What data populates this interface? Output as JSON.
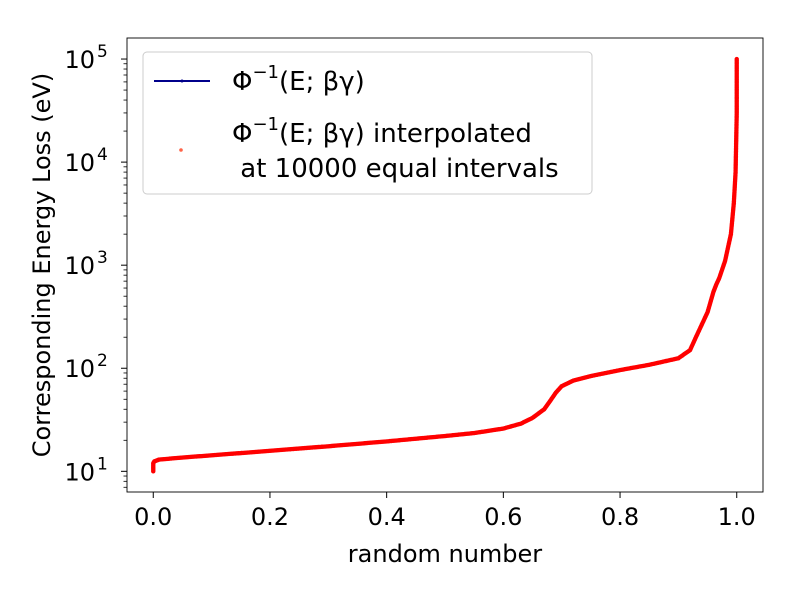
{
  "chart_data": {
    "type": "line",
    "xlabel": "random number",
    "ylabel": "Corresponding Energy Loss (eV)",
    "xlim": [
      -0.045,
      1.045
    ],
    "ylim": [
      6.3,
      160000
    ],
    "yscale": "log",
    "x_ticks": [
      "0.0",
      "0.2",
      "0.4",
      "0.6",
      "0.8",
      "1.0"
    ],
    "x_tick_values": [
      0,
      0.2,
      0.4,
      0.6,
      0.8,
      1.0
    ],
    "y_ticks": [
      {
        "value": 10,
        "base": "10",
        "exp": "1"
      },
      {
        "value": 100,
        "base": "10",
        "exp": "2"
      },
      {
        "value": 1000,
        "base": "10",
        "exp": "3"
      },
      {
        "value": 10000,
        "base": "10",
        "exp": "4"
      },
      {
        "value": 100000,
        "base": "10",
        "exp": "5"
      }
    ],
    "grid": false,
    "legend_position": "top-left",
    "series": [
      {
        "name": "Φ⁻¹(E; βγ)",
        "name_parts": {
          "phi": "Φ",
          "sup": "−1",
          "rest": "(E; βγ)"
        },
        "style": "line",
        "color": "#00008b",
        "x": [
          0,
          0,
          0.002,
          0.01,
          0.05,
          0.1,
          0.2,
          0.3,
          0.4,
          0.5,
          0.55,
          0.6,
          0.63,
          0.65,
          0.67,
          0.68,
          0.69,
          0.7,
          0.72,
          0.75,
          0.8,
          0.85,
          0.9,
          0.92,
          0.93,
          0.95,
          0.96,
          0.965,
          0.97,
          0.98,
          0.99,
          0.995,
          0.998,
          1.0,
          1.0
        ],
        "y": [
          10,
          12,
          12.5,
          13,
          13.6,
          14.3,
          15.8,
          17.5,
          19.5,
          22,
          23.5,
          26,
          29,
          33,
          40,
          48,
          58,
          67,
          76,
          84,
          96,
          108,
          125,
          150,
          200,
          350,
          550,
          650,
          750,
          1100,
          2000,
          4000,
          8000,
          30000,
          100000
        ]
      },
      {
        "name": "Φ⁻¹(E; βγ) interpolated at 10000 equal intervals",
        "name_parts": {
          "phi": "Φ",
          "sup": "−1",
          "rest": "(E; βγ) interpolated",
          "line2": " at 10000 equal intervals"
        },
        "style": "markers",
        "color": "#ff0000",
        "x": [
          0,
          0,
          0.002,
          0.01,
          0.05,
          0.1,
          0.2,
          0.3,
          0.4,
          0.5,
          0.55,
          0.6,
          0.63,
          0.65,
          0.67,
          0.68,
          0.69,
          0.7,
          0.72,
          0.75,
          0.8,
          0.85,
          0.9,
          0.92,
          0.93,
          0.95,
          0.96,
          0.965,
          0.97,
          0.98,
          0.99,
          0.995,
          0.998,
          1.0,
          1.0
        ],
        "y": [
          10,
          12,
          12.5,
          13,
          13.6,
          14.3,
          15.8,
          17.5,
          19.5,
          22,
          23.5,
          26,
          29,
          33,
          40,
          48,
          58,
          67,
          76,
          84,
          96,
          108,
          125,
          150,
          200,
          350,
          550,
          650,
          750,
          1100,
          2000,
          4000,
          8000,
          30000,
          100000
        ]
      }
    ]
  }
}
